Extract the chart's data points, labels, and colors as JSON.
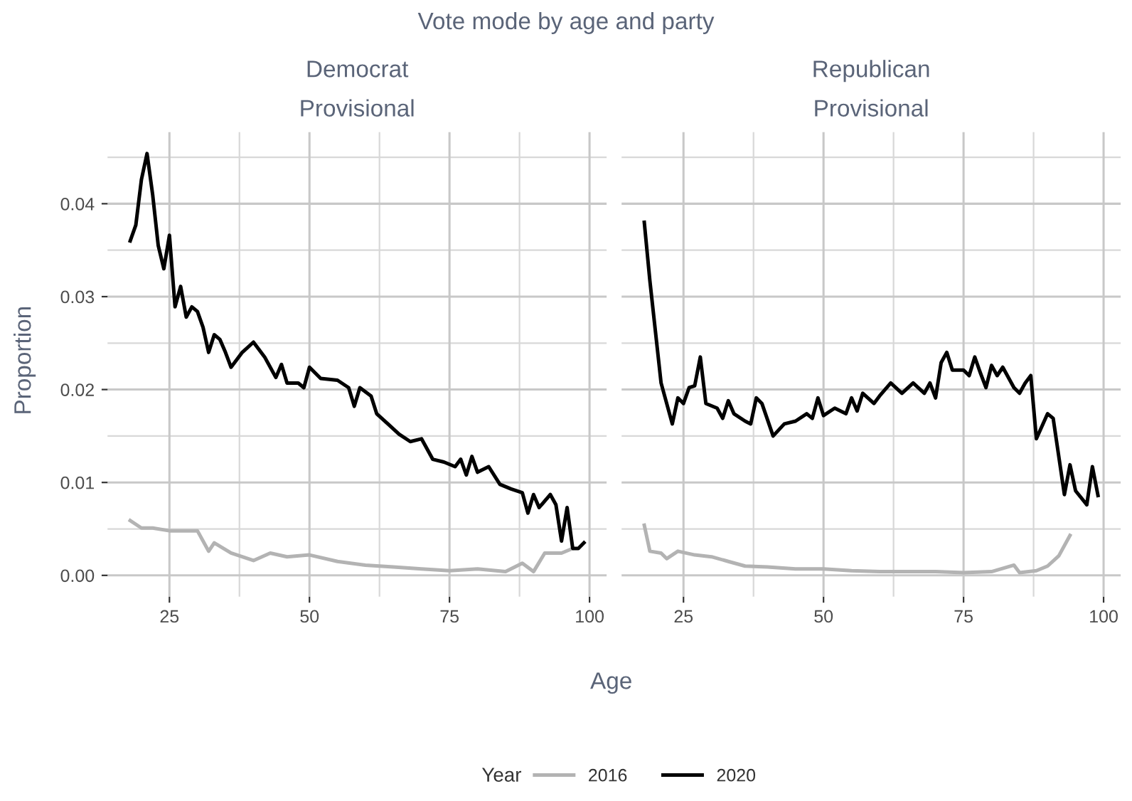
{
  "chart_data": [
    {
      "type": "line",
      "title": "Vote mode by age and party",
      "subtitle": "Democrat\nProvisional",
      "xlabel": "Age",
      "ylabel": "Proportion",
      "legend_title": "Year",
      "legend": "bottom",
      "grid": true,
      "xlim": [
        13.95,
        103.05
      ],
      "xticks": [
        25,
        50,
        75,
        100
      ],
      "ylim": [
        -0.0023,
        0.0477
      ],
      "yticks": [
        {
          "value": 0,
          "label": "0.00"
        },
        {
          "value": 0.01,
          "label": "0.01"
        },
        {
          "value": 0.02,
          "label": "0.02"
        },
        {
          "value": 0.03,
          "label": "0.03"
        },
        {
          "value": 0.04,
          "label": "0.04"
        }
      ],
      "series": [
        {
          "name": "2016",
          "color": "#b3b3b3",
          "x": [
            18,
            20,
            22,
            25,
            28,
            30,
            32,
            33,
            36,
            40,
            43,
            46,
            50,
            55,
            60,
            65,
            70,
            75,
            80,
            85,
            88,
            90,
            92,
            95,
            97
          ],
          "values": [
            0.0059,
            0.0051,
            0.0051,
            0.0048,
            0.0048,
            0.0048,
            0.0026,
            0.0035,
            0.0024,
            0.0016,
            0.0024,
            0.002,
            0.0022,
            0.0015,
            0.0011,
            0.0009,
            0.0007,
            0.0005,
            0.0007,
            0.0004,
            0.0013,
            0.0004,
            0.0024,
            0.0024,
            0.0029
          ]
        },
        {
          "name": "2020",
          "color": "#000000",
          "x": [
            18,
            19,
            20,
            21,
            22,
            23,
            24,
            25,
            26,
            27,
            28,
            29,
            30,
            31,
            32,
            33,
            34,
            35,
            36,
            38,
            40,
            42,
            44,
            45,
            46,
            48,
            49,
            50,
            52,
            55,
            57,
            58,
            59,
            61,
            62,
            64,
            66,
            68,
            70,
            72,
            74,
            76,
            77,
            78,
            79,
            80,
            82,
            84,
            86,
            88,
            89,
            90,
            91,
            93,
            94,
            95,
            96,
            97,
            98,
            99
          ],
          "values": [
            0.036,
            0.0377,
            0.0426,
            0.0454,
            0.041,
            0.0355,
            0.033,
            0.0366,
            0.0289,
            0.0311,
            0.0278,
            0.0289,
            0.0284,
            0.0267,
            0.024,
            0.0259,
            0.0254,
            0.024,
            0.0224,
            0.024,
            0.0251,
            0.0235,
            0.0213,
            0.0227,
            0.0207,
            0.0207,
            0.0202,
            0.0224,
            0.0212,
            0.021,
            0.0202,
            0.0182,
            0.0202,
            0.0193,
            0.0174,
            0.0163,
            0.0152,
            0.0144,
            0.0147,
            0.0125,
            0.0122,
            0.0117,
            0.0125,
            0.0108,
            0.0128,
            0.0111,
            0.0117,
            0.0098,
            0.0093,
            0.0089,
            0.0067,
            0.0087,
            0.0073,
            0.0087,
            0.0076,
            0.0037,
            0.0073,
            0.0029,
            0.0029,
            0.0035
          ]
        }
      ]
    },
    {
      "type": "line",
      "subtitle": "Republican\nProvisional",
      "grid": true,
      "tick_labels": "x",
      "xlim": [
        13.95,
        103.05
      ],
      "xticks": [
        25,
        50,
        75,
        100
      ],
      "ylim": [
        -0.0023,
        0.0477
      ],
      "yticks": [
        {
          "value": 0,
          "label": null
        },
        {
          "value": 0.01,
          "label": null
        },
        {
          "value": 0.02,
          "label": null
        },
        {
          "value": 0.03,
          "label": null
        },
        {
          "value": 0.04,
          "label": null
        }
      ],
      "series": [
        {
          "name": "2016",
          "color": "#b3b3b3",
          "x": [
            18,
            19,
            21,
            22,
            24,
            27,
            30,
            33,
            36,
            40,
            45,
            50,
            55,
            60,
            65,
            70,
            75,
            80,
            84,
            85,
            88,
            90,
            92,
            94
          ],
          "values": [
            0.0054,
            0.0026,
            0.0024,
            0.0018,
            0.0026,
            0.0022,
            0.002,
            0.0015,
            0.001,
            0.0009,
            0.0007,
            0.0007,
            0.0005,
            0.0004,
            0.0004,
            0.0004,
            0.0003,
            0.0004,
            0.0011,
            0.0003,
            0.0005,
            0.001,
            0.0021,
            0.0043
          ]
        },
        {
          "name": "2020",
          "color": "#000000",
          "x": [
            18,
            19,
            20,
            21,
            23,
            24,
            25,
            26,
            27,
            28,
            29,
            31,
            32,
            33,
            34,
            36,
            37,
            38,
            39,
            41,
            43,
            45,
            47,
            48,
            49,
            50,
            52,
            54,
            55,
            56,
            57,
            59,
            60,
            62,
            64,
            66,
            68,
            69,
            70,
            71,
            72,
            73,
            75,
            76,
            77,
            78,
            79,
            80,
            81,
            82,
            84,
            85,
            86,
            87,
            88,
            90,
            91,
            93,
            94,
            95,
            97,
            98,
            99
          ],
          "values": [
            0.038,
            0.0317,
            0.0262,
            0.0207,
            0.0163,
            0.0191,
            0.0185,
            0.0202,
            0.0204,
            0.0235,
            0.0185,
            0.018,
            0.0169,
            0.0188,
            0.0174,
            0.0166,
            0.0163,
            0.0191,
            0.0185,
            0.015,
            0.0163,
            0.0166,
            0.0174,
            0.0169,
            0.0191,
            0.0172,
            0.018,
            0.0174,
            0.0191,
            0.0177,
            0.0196,
            0.0185,
            0.0193,
            0.0207,
            0.0196,
            0.0207,
            0.0196,
            0.0207,
            0.0191,
            0.0229,
            0.024,
            0.0221,
            0.0221,
            0.0215,
            0.0235,
            0.0218,
            0.0202,
            0.0226,
            0.0215,
            0.0224,
            0.0202,
            0.0196,
            0.0207,
            0.0215,
            0.0147,
            0.0174,
            0.0169,
            0.0087,
            0.0119,
            0.0091,
            0.0076,
            0.0117,
            0.0086
          ]
        }
      ]
    }
  ]
}
